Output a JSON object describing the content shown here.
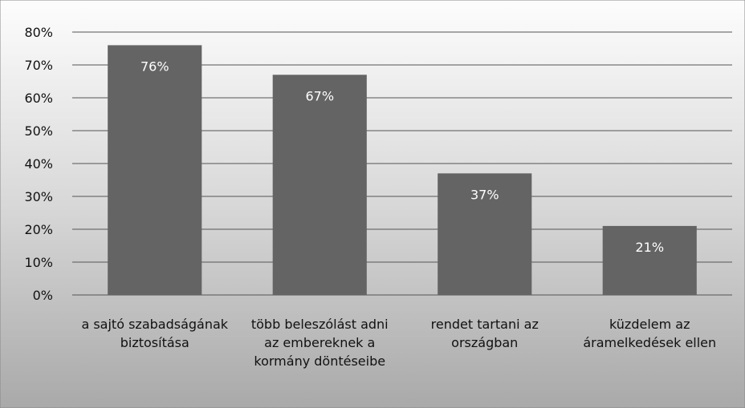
{
  "chart_data": {
    "type": "bar",
    "categories": [
      "a sajtó szabadságának biztosítása",
      "több beleszólást adni az embereknek a kormány döntéseibe",
      "rendet tartani az országban",
      "küzdelem az áramelkedések ellen"
    ],
    "values": [
      76,
      67,
      37,
      21
    ],
    "value_labels": [
      "76%",
      "67%",
      "37%",
      "21%"
    ],
    "color": "#646464",
    "ylim": [
      0,
      80
    ],
    "yticks": [
      {
        "value": 0,
        "label": "0%"
      },
      {
        "value": 10,
        "label": "10%"
      },
      {
        "value": 20,
        "label": "20%"
      },
      {
        "value": 30,
        "label": "30%"
      },
      {
        "value": 40,
        "label": "40%"
      },
      {
        "value": 50,
        "label": "50%"
      },
      {
        "value": 60,
        "label": "60%"
      },
      {
        "value": 70,
        "label": "70%"
      },
      {
        "value": 80,
        "label": "80%"
      }
    ],
    "grid": true
  }
}
